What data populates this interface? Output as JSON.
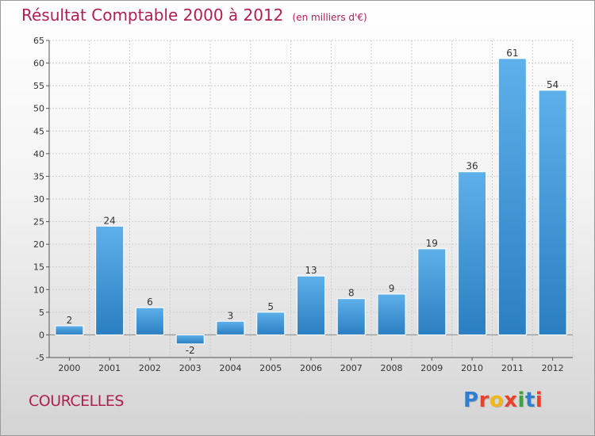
{
  "header": {
    "title": "Résultat Comptable 2000 à 2012",
    "subtitle": "(en milliers d'€)"
  },
  "footer": {
    "city": "COURCELLES",
    "brand": "Proxiti",
    "brand_colors": [
      "#2e7fd0",
      "#e8412c",
      "#f2b51b",
      "#e8412c",
      "#3ca43c",
      "#2e7fd0",
      "#e8412c"
    ]
  },
  "colors": {
    "title": "#b0204e",
    "bar_light": "#5eb0ea",
    "bar_dark": "#2a7fc1",
    "grid": "#cccccc",
    "axis": "#555555"
  },
  "chart_data": {
    "type": "bar",
    "title": "Résultat Comptable 2000 à 2012",
    "subtitle": "(en milliers d'€)",
    "categories": [
      "2000",
      "2001",
      "2002",
      "2003",
      "2004",
      "2005",
      "2006",
      "2007",
      "2008",
      "2009",
      "2010",
      "2011",
      "2012"
    ],
    "values": [
      2,
      24,
      6,
      -2,
      3,
      5,
      13,
      8,
      9,
      19,
      36,
      61,
      54
    ],
    "ylim": [
      -5,
      65
    ],
    "yticks": [
      -5,
      0,
      5,
      10,
      15,
      20,
      25,
      30,
      35,
      40,
      45,
      50,
      55,
      60,
      65
    ],
    "grid": true,
    "xlabel": "",
    "ylabel": ""
  }
}
